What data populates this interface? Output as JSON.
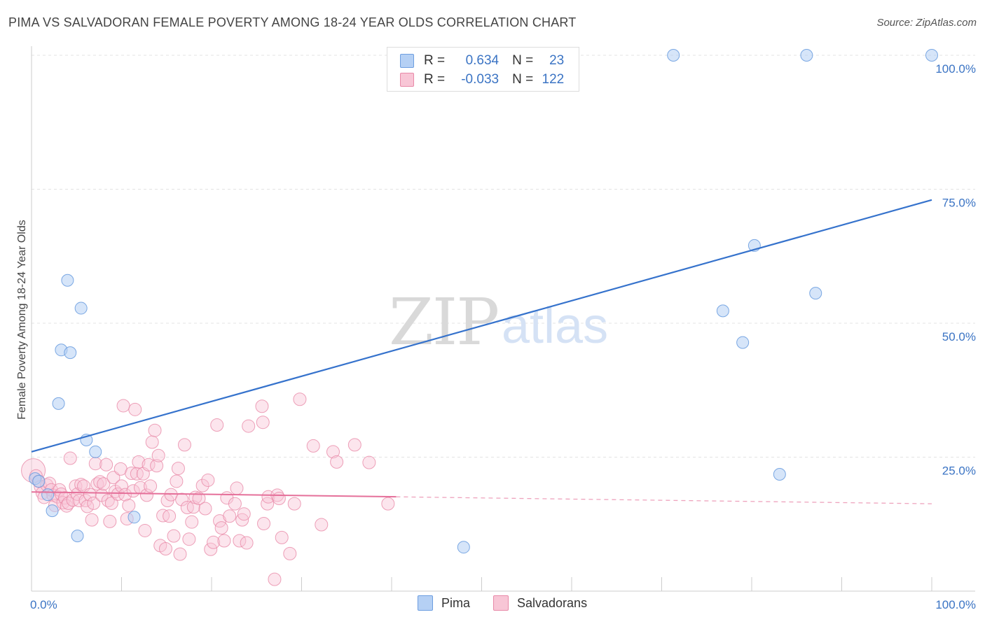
{
  "title": "PIMA VS SALVADORAN FEMALE POVERTY AMONG 18-24 YEAR OLDS CORRELATION CHART",
  "source": "Source: ZipAtlas.com",
  "watermark": {
    "zip": "ZIP",
    "atlas": "atlas"
  },
  "legend_top": {
    "rows": [
      {
        "r_label": "R =",
        "r_value": "0.634",
        "n_label": "N =",
        "n_value": "23",
        "color": "#a9c8f2",
        "border": "#6d9ee0"
      },
      {
        "r_label": "R =",
        "r_value": "-0.033",
        "n_label": "N =",
        "n_value": "122",
        "color": "#f7bcd0",
        "border": "#e889a8"
      }
    ]
  },
  "legend_bottom": [
    {
      "label": "Pima",
      "color": "#b5d0f4",
      "border": "#6d9ee0"
    },
    {
      "label": "Salvadorans",
      "color": "#f8c6d6",
      "border": "#e889a8"
    }
  ],
  "chart_data": {
    "type": "scatter",
    "ylabel": "Female Poverty Among 18-24 Year Olds",
    "xlabel": "",
    "xlim": [
      0,
      100
    ],
    "ylim": [
      0,
      100
    ],
    "x_tick_labels": [
      {
        "value": 0,
        "label": "0.0%"
      },
      {
        "value": 100,
        "label": "100.0%"
      }
    ],
    "y_tick_labels": [
      {
        "value": 25,
        "label": "25.0%"
      },
      {
        "value": 50,
        "label": "50.0%"
      },
      {
        "value": 75,
        "label": "75.0%"
      },
      {
        "value": 100,
        "label": "100.0%"
      }
    ],
    "grid": true,
    "series": [
      {
        "name": "Pima",
        "color": "#6d9ee0",
        "fill": "#b5d0f4",
        "trend": {
          "x": [
            0,
            100
          ],
          "y": [
            26,
            73
          ]
        },
        "points": [
          [
            0.4,
            21
          ],
          [
            0.8,
            20.5
          ],
          [
            1.8,
            18
          ],
          [
            2.3,
            15
          ],
          [
            3,
            35
          ],
          [
            3.3,
            45
          ],
          [
            4,
            58
          ],
          [
            4.3,
            44.5
          ],
          [
            5.1,
            10.3
          ],
          [
            5.5,
            52.8
          ],
          [
            6.1,
            28.2
          ],
          [
            7.1,
            26
          ],
          [
            11.4,
            13.8
          ],
          [
            48,
            8.2
          ],
          [
            71.3,
            100
          ],
          [
            76.8,
            52.3
          ],
          [
            79,
            46.4
          ],
          [
            80.3,
            64.5
          ],
          [
            83.1,
            21.8
          ],
          [
            86.1,
            100
          ],
          [
            87.1,
            55.6
          ],
          [
            100,
            100
          ]
        ]
      },
      {
        "name": "Salvadorans",
        "color": "#e889a8",
        "fill": "#f8c6d6",
        "trend": {
          "x": [
            0,
            40.5
          ],
          "y": [
            18.5,
            17.6
          ],
          "dashed_x": [
            40.5,
            100
          ],
          "dashed_y": [
            17.6,
            16.3
          ]
        },
        "points": [
          [
            0.2,
            22.5
          ],
          [
            0.5,
            21.5
          ],
          [
            0.8,
            20.5
          ],
          [
            1.0,
            19.5
          ],
          [
            1.2,
            18.3
          ],
          [
            1.4,
            17.5
          ],
          [
            1.7,
            19.8
          ],
          [
            2.0,
            20.1
          ],
          [
            2.2,
            18.9
          ],
          [
            2.4,
            17.9
          ],
          [
            2.6,
            16.0
          ],
          [
            2.9,
            17.6
          ],
          [
            3.1,
            18.9
          ],
          [
            3.3,
            18.1
          ],
          [
            3.5,
            16.5
          ],
          [
            3.7,
            17.4
          ],
          [
            3.9,
            15.9
          ],
          [
            4.1,
            16.4
          ],
          [
            4.3,
            24.8
          ],
          [
            4.6,
            17.0
          ],
          [
            4.9,
            19.6
          ],
          [
            5.1,
            18.1
          ],
          [
            5.3,
            16.9
          ],
          [
            5.5,
            19.9
          ],
          [
            5.8,
            19.6
          ],
          [
            6.0,
            16.9
          ],
          [
            6.2,
            15.8
          ],
          [
            6.5,
            18.0
          ],
          [
            6.7,
            13.3
          ],
          [
            6.9,
            16.4
          ],
          [
            7.1,
            23.8
          ],
          [
            7.3,
            20.0
          ],
          [
            7.6,
            20.4
          ],
          [
            7.8,
            17.9
          ],
          [
            8.0,
            20.0
          ],
          [
            8.3,
            23.6
          ],
          [
            8.5,
            16.9
          ],
          [
            8.7,
            13.0
          ],
          [
            8.9,
            16.4
          ],
          [
            9.1,
            21.2
          ],
          [
            9.3,
            18.6
          ],
          [
            9.6,
            18.1
          ],
          [
            9.9,
            22.8
          ],
          [
            10.0,
            19.6
          ],
          [
            10.2,
            34.6
          ],
          [
            10.4,
            18.0
          ],
          [
            10.6,
            13.5
          ],
          [
            10.8,
            16.0
          ],
          [
            11.1,
            22.0
          ],
          [
            11.3,
            18.7
          ],
          [
            11.5,
            33.9
          ],
          [
            11.7,
            21.9
          ],
          [
            11.9,
            24.1
          ],
          [
            12.1,
            19.3
          ],
          [
            12.4,
            21.9
          ],
          [
            12.6,
            11.3
          ],
          [
            12.8,
            17.9
          ],
          [
            13.0,
            23.6
          ],
          [
            13.2,
            19.6
          ],
          [
            13.4,
            27.8
          ],
          [
            13.7,
            30.0
          ],
          [
            13.9,
            23.4
          ],
          [
            14.1,
            25.3
          ],
          [
            14.3,
            8.5
          ],
          [
            14.6,
            14.1
          ],
          [
            14.9,
            7.9
          ],
          [
            15.1,
            16.9
          ],
          [
            15.3,
            14.0
          ],
          [
            15.5,
            18.0
          ],
          [
            15.8,
            10.3
          ],
          [
            16.1,
            20.5
          ],
          [
            16.3,
            22.9
          ],
          [
            16.5,
            6.9
          ],
          [
            16.7,
            17.1
          ],
          [
            17.0,
            27.3
          ],
          [
            17.3,
            15.6
          ],
          [
            17.5,
            9.7
          ],
          [
            17.8,
            12.9
          ],
          [
            18.0,
            15.7
          ],
          [
            18.2,
            17.5
          ],
          [
            18.6,
            17.3
          ],
          [
            19.0,
            19.7
          ],
          [
            19.3,
            15.4
          ],
          [
            19.6,
            20.7
          ],
          [
            19.9,
            7.8
          ],
          [
            20.2,
            9.1
          ],
          [
            20.6,
            31.0
          ],
          [
            20.9,
            13.1
          ],
          [
            21.1,
            11.8
          ],
          [
            21.4,
            9.4
          ],
          [
            21.7,
            17.4
          ],
          [
            22.0,
            14.0
          ],
          [
            22.6,
            16.3
          ],
          [
            22.8,
            19.2
          ],
          [
            23.1,
            9.4
          ],
          [
            23.4,
            13.3
          ],
          [
            23.6,
            14.4
          ],
          [
            23.9,
            9.0
          ],
          [
            24.1,
            30.8
          ],
          [
            25.6,
            34.5
          ],
          [
            25.7,
            31.5
          ],
          [
            25.8,
            12.6
          ],
          [
            26.2,
            16.3
          ],
          [
            26.3,
            17.6
          ],
          [
            27.0,
            2.2
          ],
          [
            27.3,
            17.9
          ],
          [
            27.5,
            17.3
          ],
          [
            27.8,
            10.0
          ],
          [
            28.7,
            7.0
          ],
          [
            29.2,
            16.3
          ],
          [
            29.8,
            35.8
          ],
          [
            31.3,
            27.1
          ],
          [
            32.2,
            12.4
          ],
          [
            33.5,
            26.0
          ],
          [
            33.9,
            24.1
          ],
          [
            35.9,
            27.3
          ],
          [
            37.5,
            24.0
          ],
          [
            39.6,
            16.3
          ]
        ]
      }
    ]
  }
}
